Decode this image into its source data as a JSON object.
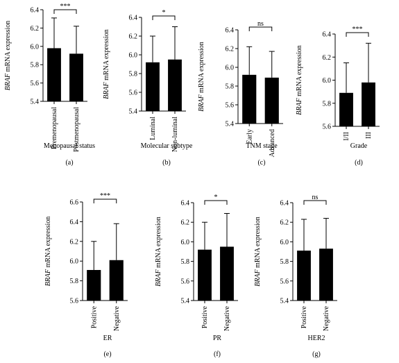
{
  "chart_data": [
    {
      "type": "bar",
      "panel": "(a)",
      "categories": [
        "Premenopausal",
        "Postmenopausal"
      ],
      "values": [
        5.98,
        5.92
      ],
      "errors": [
        0.33,
        0.3
      ],
      "ylabel_italic": "BRAF",
      "ylabel_rest": " mRNA expression",
      "xlabel": "Menopausal status",
      "ylim": [
        5.4,
        6.4
      ],
      "yticks": [
        "5.4",
        "5.6",
        "5.8",
        "6.0",
        "6.2",
        "6.4"
      ],
      "significance": "***"
    },
    {
      "type": "bar",
      "panel": "(b)",
      "categories": [
        "Luminal",
        "Non-luminal"
      ],
      "values": [
        5.92,
        5.95
      ],
      "errors": [
        0.28,
        0.35
      ],
      "ylabel_italic": "BRAF",
      "ylabel_rest": " mRNA expression",
      "xlabel": "Molecular subtype",
      "ylim": [
        5.4,
        6.4
      ],
      "yticks": [
        "5.4",
        "5.6",
        "5.8",
        "6.0",
        "6.2",
        "6.4"
      ],
      "significance": "*"
    },
    {
      "type": "bar",
      "panel": "(c)",
      "categories": [
        "Early",
        "Advanced"
      ],
      "values": [
        5.92,
        5.89
      ],
      "errors": [
        0.3,
        0.28
      ],
      "ylabel_italic": "BRAF",
      "ylabel_rest": " mRNA expression",
      "xlabel": "TNM stage",
      "ylim": [
        5.4,
        6.4
      ],
      "yticks": [
        "5.4",
        "5.6",
        "5.8",
        "6.0",
        "6.2",
        "6.4"
      ],
      "significance": "ns"
    },
    {
      "type": "bar",
      "panel": "(d)",
      "categories": [
        "I/II",
        "III"
      ],
      "values": [
        5.89,
        5.98
      ],
      "errors": [
        0.26,
        0.34
      ],
      "ylabel_italic": "BRAF",
      "ylabel_rest": " mRNA expression",
      "xlabel": "Grade",
      "ylim": [
        5.6,
        6.4
      ],
      "yticks": [
        "5.6",
        "5.8",
        "6.0",
        "6.2",
        "6.4"
      ],
      "significance": "***"
    },
    {
      "type": "bar",
      "panel": "(e)",
      "categories": [
        "Positive",
        "Negative"
      ],
      "values": [
        5.91,
        6.01
      ],
      "errors": [
        0.29,
        0.37
      ],
      "ylabel_italic": "BRAF",
      "ylabel_rest": " mRNA expression",
      "xlabel": "ER",
      "ylim": [
        5.6,
        6.6
      ],
      "yticks": [
        "5.6",
        "5.8",
        "6.0",
        "6.2",
        "6.4",
        "6.6"
      ],
      "significance": "***"
    },
    {
      "type": "bar",
      "panel": "(f)",
      "categories": [
        "Positive",
        "Negative"
      ],
      "values": [
        5.92,
        5.95
      ],
      "errors": [
        0.28,
        0.34
      ],
      "ylabel_italic": "BRAF",
      "ylabel_rest": " mRNA expression",
      "xlabel": "PR",
      "ylim": [
        5.4,
        6.4
      ],
      "yticks": [
        "5.4",
        "5.6",
        "5.8",
        "6.0",
        "6.2",
        "6.4"
      ],
      "significance": "*"
    },
    {
      "type": "bar",
      "panel": "(g)",
      "categories": [
        "Positive",
        "Negative"
      ],
      "values": [
        5.91,
        5.93
      ],
      "errors": [
        0.32,
        0.31
      ],
      "ylabel_italic": "BRAF",
      "ylabel_rest": " mRNA expression",
      "xlabel": "HER2",
      "ylim": [
        5.4,
        6.4
      ],
      "yticks": [
        "5.4",
        "5.6",
        "5.8",
        "6.0",
        "6.2",
        "6.4"
      ],
      "significance": "ns"
    }
  ]
}
